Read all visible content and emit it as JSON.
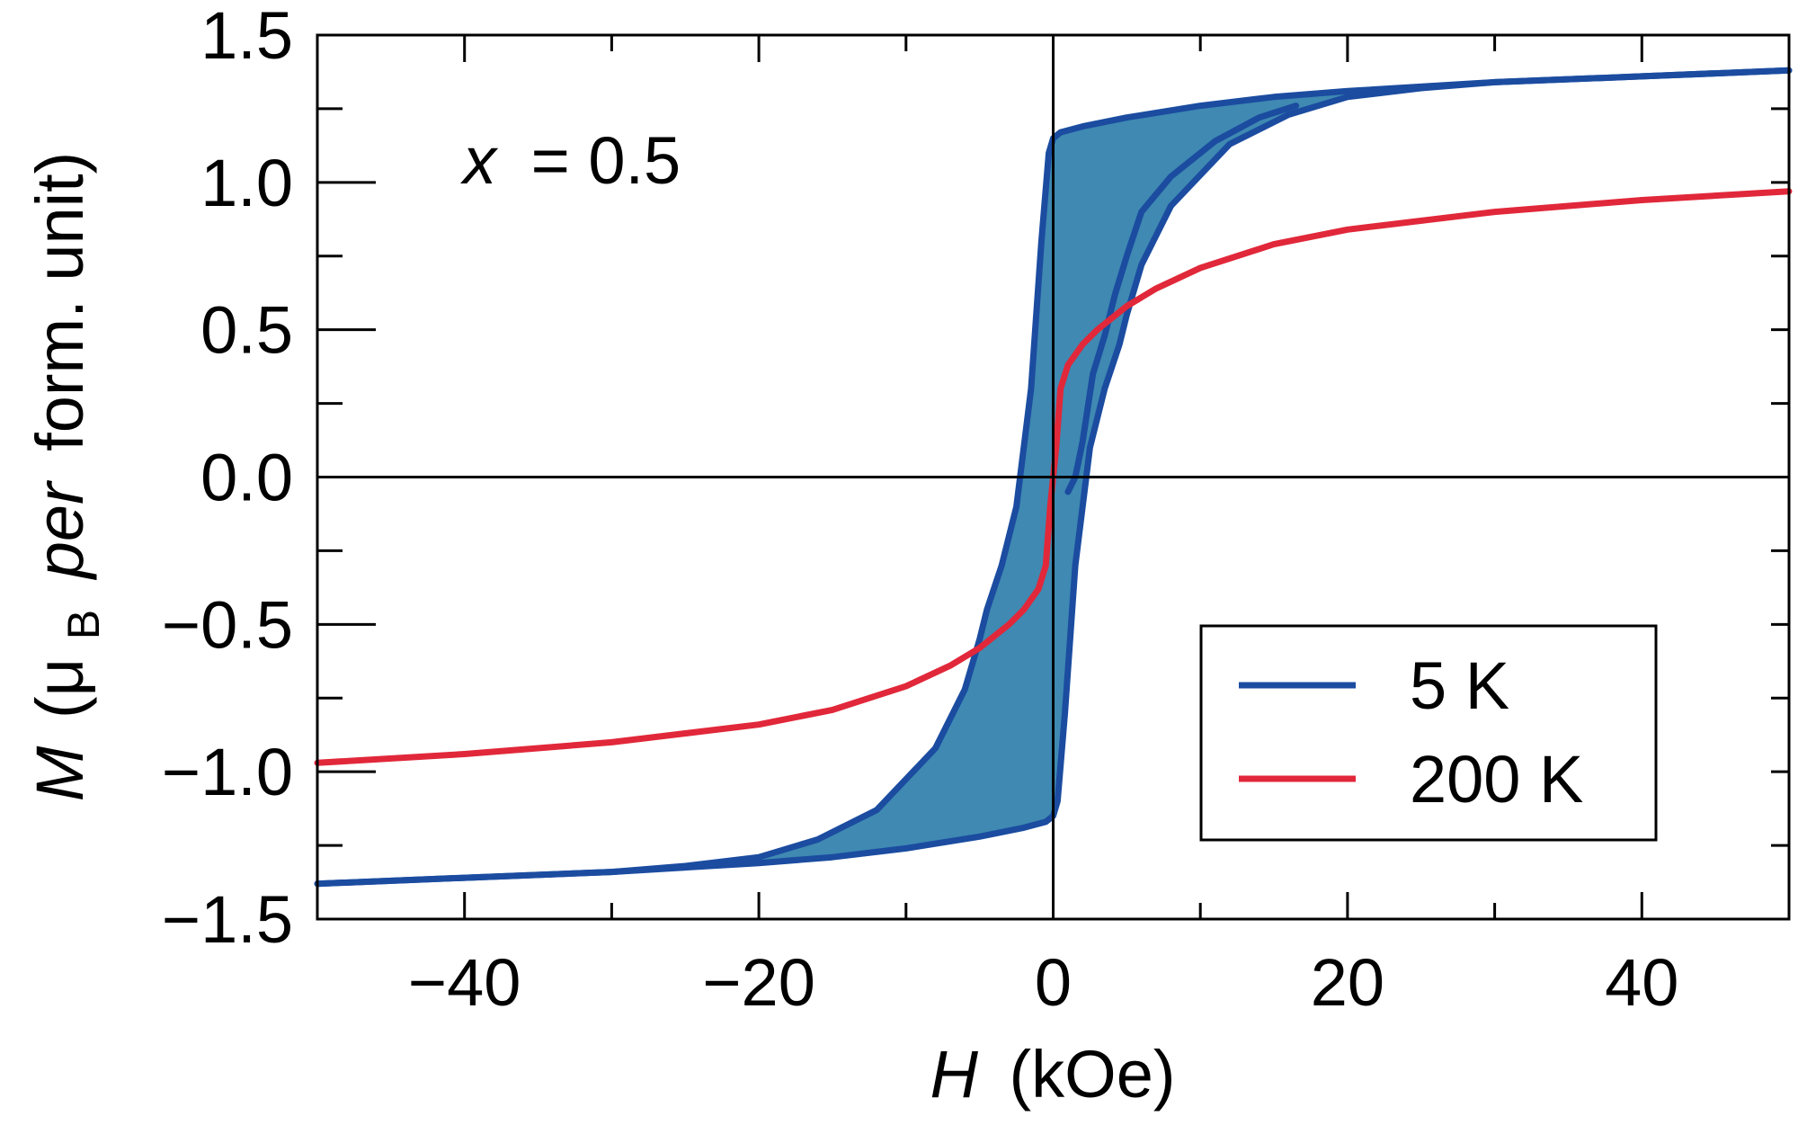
{
  "chart_data": {
    "type": "line",
    "xlabel_var": "H",
    "xlabel_unit": "(kOe)",
    "ylabel_var": "M",
    "ylabel_open": "(μ",
    "ylabel_sub": "B",
    "ylabel_per": "per",
    "ylabel_rest": "form. unit)",
    "annotation_var": "x",
    "annotation_rest": "= 0.5",
    "xlim": [
      -50,
      50
    ],
    "ylim": [
      -1.5,
      1.5
    ],
    "x_ticks": [
      {
        "value": -40,
        "label": "−40"
      },
      {
        "value": -20,
        "label": "−20"
      },
      {
        "value": 0,
        "label": "0"
      },
      {
        "value": 20,
        "label": "20"
      },
      {
        "value": 40,
        "label": "40"
      }
    ],
    "y_ticks": [
      {
        "value": 1.5,
        "label": "1.5"
      },
      {
        "value": 1.0,
        "label": "1.0"
      },
      {
        "value": 0.5,
        "label": "0.5"
      },
      {
        "value": 0.0,
        "label": "0.0"
      },
      {
        "value": -0.5,
        "label": "−0.5"
      },
      {
        "value": -1.0,
        "label": "−1.0"
      },
      {
        "value": -1.5,
        "label": "−1.5"
      }
    ],
    "colors": {
      "fill": "#3f89b2",
      "series_5K": "#1b4ca0",
      "series_200K": "#e1283a"
    },
    "series": [
      {
        "name": "5 K",
        "color": "#1b4ca0",
        "loop_fill": true,
        "curves": [
          {
            "x": [
              50,
              40,
              30,
              20,
              15,
              10,
              5,
              2,
              0.5,
              0,
              -0.3,
              -0.8,
              -1.5,
              -2.5,
              -3.5,
              -4.5,
              -5,
              -6,
              -8,
              -12,
              -16,
              -20,
              -25,
              -30,
              -40,
              -50
            ],
            "y": [
              1.38,
              1.36,
              1.34,
              1.31,
              1.29,
              1.26,
              1.22,
              1.19,
              1.17,
              1.15,
              1.1,
              0.8,
              0.3,
              -0.1,
              -0.3,
              -0.45,
              -0.55,
              -0.72,
              -0.92,
              -1.13,
              -1.23,
              -1.29,
              -1.32,
              -1.34,
              -1.36,
              -1.38
            ]
          },
          {
            "x": [
              -50,
              -40,
              -30,
              -20,
              -15,
              -10,
              -5,
              -2,
              -0.5,
              0,
              0.3,
              0.8,
              1.5,
              2.5,
              3.5,
              4.5,
              5,
              6,
              8,
              12,
              16,
              20,
              25,
              30,
              40,
              50
            ],
            "y": [
              -1.38,
              -1.36,
              -1.34,
              -1.31,
              -1.29,
              -1.26,
              -1.22,
              -1.19,
              -1.17,
              -1.15,
              -1.1,
              -0.8,
              -0.3,
              0.1,
              0.3,
              0.45,
              0.55,
              0.72,
              0.92,
              1.13,
              1.23,
              1.29,
              1.32,
              1.34,
              1.36,
              1.38
            ]
          },
          {
            "x": [
              1,
              1.5,
              2,
              2.7,
              3.5,
              4.2,
              5,
              6,
              8,
              11,
              14,
              16.5
            ],
            "y": [
              -0.05,
              0.0,
              0.12,
              0.35,
              0.48,
              0.62,
              0.75,
              0.9,
              1.02,
              1.14,
              1.22,
              1.26
            ]
          }
        ]
      },
      {
        "name": "200 K",
        "color": "#e1283a",
        "x": [
          -50,
          -40,
          -30,
          -20,
          -15,
          -10,
          -7,
          -5,
          -3,
          -2,
          -1,
          -0.5,
          -0.2,
          0,
          0.2,
          0.5,
          1,
          2,
          3,
          5,
          7,
          10,
          15,
          20,
          30,
          40,
          50
        ],
        "y": [
          -0.97,
          -0.94,
          -0.9,
          -0.84,
          -0.79,
          -0.71,
          -0.64,
          -0.58,
          -0.5,
          -0.45,
          -0.38,
          -0.3,
          -0.1,
          0.0,
          0.1,
          0.3,
          0.38,
          0.45,
          0.5,
          0.58,
          0.64,
          0.71,
          0.79,
          0.84,
          0.9,
          0.94,
          0.97
        ]
      }
    ],
    "legend": [
      {
        "label": "5 K",
        "color": "#1b4ca0"
      },
      {
        "label": "200 K",
        "color": "#e1283a"
      }
    ],
    "legend_position": "bottom-right"
  }
}
